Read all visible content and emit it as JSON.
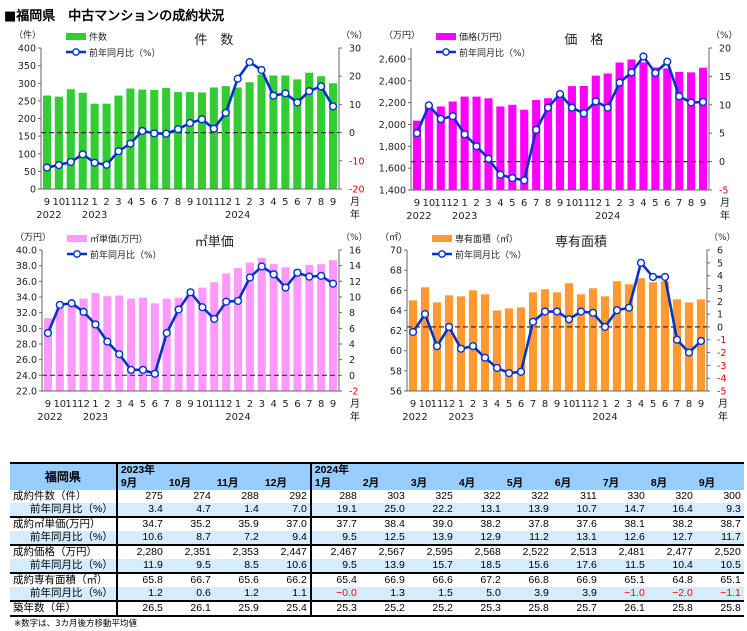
{
  "title": "■福岡県　中古マンションの成約状況",
  "month_labels": [
    "9",
    "10",
    "11",
    "12",
    "1",
    "2",
    "3",
    "4",
    "5",
    "6",
    "7",
    "8",
    "9",
    "10",
    "11",
    "12",
    "1",
    "2",
    "3",
    "4",
    "5",
    "6",
    "7",
    "8",
    "9"
  ],
  "year_labels": [
    {
      "index": 0,
      "label": "2022"
    },
    {
      "index": 4,
      "label": "2023"
    },
    {
      "index": 16,
      "label": "2024"
    }
  ],
  "axis_end_labels": {
    "month": "月",
    "year": "年"
  },
  "chart_data": [
    {
      "type": "bar+line",
      "title": "件　数",
      "left_unit": "（件）",
      "right_unit": "（%）",
      "bar_name": "件数",
      "line_name": "前年同月比（%）",
      "bar_color": "#33cc33",
      "line_color": "#0033cc",
      "ylim": [
        0,
        400
      ],
      "y2lim": [
        -20,
        30
      ],
      "yticks": [
        0,
        50,
        100,
        150,
        200,
        250,
        300,
        350,
        400
      ],
      "ytick_labels": [
        "0",
        "50",
        "100",
        "150",
        "200",
        "250",
        "300",
        "350",
        "400"
      ],
      "y2ticks": [
        -20,
        -10,
        0,
        10,
        20,
        30
      ],
      "y2tick_labels": [
        "-20",
        "-10",
        "0",
        "10",
        "20",
        "30"
      ],
      "bars": [
        265,
        262,
        283,
        273,
        242,
        242,
        265,
        285,
        282,
        281,
        287,
        275,
        275,
        274,
        288,
        292,
        288,
        303,
        325,
        322,
        322,
        311,
        330,
        320,
        300
      ],
      "line": [
        -12.4,
        -11.5,
        -10.4,
        -7.7,
        -10.7,
        -11.4,
        -6.6,
        -3.9,
        0.6,
        -0.3,
        -0.4,
        1.2,
        3.4,
        4.7,
        1.4,
        7.0,
        19.1,
        25.0,
        22.2,
        13.1,
        13.9,
        10.7,
        14.7,
        16.4,
        9.3
      ]
    },
    {
      "type": "bar+line",
      "title": "価　格",
      "left_unit": "（万円）",
      "right_unit": "（%）",
      "bar_name": "価格(万円）",
      "line_name": "前年同月比（%）",
      "bar_color": "#ff00ff",
      "line_color": "#0033cc",
      "ylim": [
        1400,
        2700
      ],
      "y2lim": [
        -5,
        20
      ],
      "yticks": [
        1400,
        1600,
        1800,
        2000,
        2200,
        2400,
        2600
      ],
      "ytick_labels": [
        "1,400",
        "1,600",
        "1,800",
        "2,000",
        "2,200",
        "2,400",
        "2,600"
      ],
      "y2ticks": [
        -5,
        0,
        5,
        10,
        15,
        20
      ],
      "y2tick_labels": [
        "-5",
        "0",
        "5",
        "10",
        "15",
        "20"
      ],
      "bars": [
        2035,
        2170,
        2165,
        2210,
        2255,
        2255,
        2240,
        2165,
        2180,
        2135,
        2225,
        2240,
        2280,
        2351,
        2353,
        2447,
        2467,
        2567,
        2595,
        2568,
        2522,
        2513,
        2481,
        2477,
        2520
      ],
      "line": [
        5.0,
        9.9,
        7.5,
        8.0,
        4.8,
        2.7,
        0.5,
        -2.3,
        -2.9,
        -3.3,
        5.6,
        9.5,
        11.9,
        9.5,
        8.5,
        10.6,
        9.5,
        13.9,
        15.7,
        18.5,
        15.6,
        17.6,
        11.5,
        10.4,
        10.5
      ]
    },
    {
      "type": "bar+line",
      "title": "㎡単価",
      "left_unit": "（万円）",
      "right_unit": "（%）",
      "bar_name": "㎡単価(万円）",
      "line_name": "前年同月比（%）",
      "bar_color": "#ff99ff",
      "line_color": "#0033cc",
      "ylim": [
        22,
        40
      ],
      "y2lim": [
        -2,
        16
      ],
      "yticks": [
        22,
        24,
        26,
        28,
        30,
        32,
        34,
        36,
        38,
        40
      ],
      "ytick_labels": [
        "22.0",
        "24.0",
        "26.0",
        "28.0",
        "30.0",
        "32.0",
        "34.0",
        "36.0",
        "38.0",
        "40.0"
      ],
      "y2ticks": [
        -2,
        0,
        2,
        4,
        6,
        8,
        10,
        12,
        14,
        16
      ],
      "y2tick_labels": [
        "-2",
        "0",
        "2",
        "4",
        "6",
        "8",
        "10",
        "12",
        "14",
        "16"
      ],
      "bars": [
        31.3,
        32.9,
        33.1,
        33.8,
        34.5,
        34.1,
        34.2,
        33.8,
        33.9,
        33.2,
        33.8,
        33.9,
        34.7,
        35.2,
        35.9,
        37.0,
        37.7,
        38.4,
        39.0,
        38.2,
        37.8,
        37.6,
        38.1,
        38.2,
        38.7
      ],
      "line": [
        5.4,
        9.0,
        9.2,
        8.1,
        6.5,
        4.3,
        2.7,
        0.7,
        0.7,
        0.2,
        5.4,
        8.4,
        10.6,
        8.7,
        7.2,
        9.4,
        9.5,
        12.5,
        13.9,
        12.9,
        11.2,
        13.1,
        12.6,
        12.7,
        11.7
      ]
    },
    {
      "type": "bar+line",
      "title": "専有面積",
      "left_unit": "（㎡）",
      "right_unit": "（%）",
      "bar_name": "専有面積（㎡）",
      "line_name": "前年同月比（%）",
      "bar_color": "#ff9933",
      "line_color": "#0033cc",
      "ylim": [
        56,
        70
      ],
      "y2lim": [
        -5,
        6
      ],
      "yticks": [
        56,
        58,
        60,
        62,
        64,
        66,
        68,
        70
      ],
      "ytick_labels": [
        "56",
        "58",
        "60",
        "62",
        "64",
        "66",
        "68",
        "70"
      ],
      "y2ticks": [
        -5,
        -4,
        -3,
        -2,
        -1,
        0,
        1,
        2,
        3,
        4,
        5,
        6
      ],
      "y2tick_labels": [
        "-5",
        "-4",
        "-3",
        "-2",
        "-1",
        "0",
        "1",
        "2",
        "3",
        "4",
        "5",
        "6"
      ],
      "bars": [
        65.0,
        66.3,
        64.8,
        65.5,
        65.4,
        66.0,
        65.6,
        64.0,
        64.2,
        64.3,
        65.8,
        66.1,
        65.8,
        66.7,
        65.6,
        66.2,
        65.4,
        66.9,
        66.6,
        67.2,
        66.8,
        66.9,
        65.1,
        64.8,
        65.1
      ],
      "line": [
        -0.4,
        1.0,
        -1.5,
        0.0,
        -1.7,
        -1.5,
        -2.4,
        -3.2,
        -3.6,
        -3.5,
        0.4,
        1.2,
        1.2,
        0.6,
        1.2,
        1.1,
        -0.0,
        1.3,
        1.5,
        5.0,
        3.9,
        3.9,
        -1.0,
        -2.0,
        -1.1
      ]
    }
  ],
  "table": {
    "corner": "福岡県",
    "year_headers": [
      {
        "col": 0,
        "label": "2023年"
      },
      {
        "col": 4,
        "label": "2024年"
      }
    ],
    "months": [
      "9月",
      "10月",
      "11月",
      "12月",
      "1月",
      "2月",
      "3月",
      "4月",
      "5月",
      "6月",
      "7月",
      "8月",
      "9月"
    ],
    "rows": [
      {
        "label": "成約件数（件）",
        "yoy": false,
        "values": [
          "275",
          "274",
          "288",
          "292",
          "288",
          "303",
          "325",
          "322",
          "322",
          "311",
          "330",
          "320",
          "300"
        ]
      },
      {
        "label": "前年同月比（%）",
        "yoy": true,
        "values": [
          "3.4",
          "4.7",
          "1.4",
          "7.0",
          "19.1",
          "25.0",
          "22.2",
          "13.1",
          "13.9",
          "10.7",
          "14.7",
          "16.4",
          "9.3"
        ]
      },
      {
        "label": "成約㎡単価(万円）",
        "yoy": false,
        "values": [
          "34.7",
          "35.2",
          "35.9",
          "37.0",
          "37.7",
          "38.4",
          "39.0",
          "38.2",
          "37.8",
          "37.6",
          "38.1",
          "38.2",
          "38.7"
        ]
      },
      {
        "label": "前年同月比（%）",
        "yoy": true,
        "values": [
          "10.6",
          "8.7",
          "7.2",
          "9.4",
          "9.5",
          "12.5",
          "13.9",
          "12.9",
          "11.2",
          "13.1",
          "12.6",
          "12.7",
          "11.7"
        ]
      },
      {
        "label": "成約価格（万円）",
        "yoy": false,
        "values": [
          "2,280",
          "2,351",
          "2,353",
          "2,447",
          "2,467",
          "2,567",
          "2,595",
          "2,568",
          "2,522",
          "2,513",
          "2,481",
          "2,477",
          "2,520"
        ]
      },
      {
        "label": "前年同月比（%）",
        "yoy": true,
        "values": [
          "11.9",
          "9.5",
          "8.5",
          "10.6",
          "9.5",
          "13.9",
          "15.7",
          "18.5",
          "15.6",
          "17.6",
          "11.5",
          "10.4",
          "10.5"
        ]
      },
      {
        "label": "成約専有面積（㎡）",
        "yoy": false,
        "values": [
          "65.8",
          "66.7",
          "65.6",
          "66.2",
          "65.4",
          "66.9",
          "66.6",
          "67.2",
          "66.8",
          "66.9",
          "65.1",
          "64.8",
          "65.1"
        ]
      },
      {
        "label": "前年同月比（%）",
        "yoy": true,
        "values": [
          "1.2",
          "0.6",
          "1.2",
          "1.1",
          "−0.0",
          "1.3",
          "1.5",
          "5.0",
          "3.9",
          "3.9",
          "−1.0",
          "−2.0",
          "−1.1"
        ]
      },
      {
        "label": "築年数（年）",
        "yoy": false,
        "values": [
          "26.5",
          "26.1",
          "25.9",
          "25.4",
          "25.3",
          "25.2",
          "25.2",
          "25.3",
          "25.8",
          "25.7",
          "26.1",
          "25.8",
          "25.8"
        ]
      }
    ],
    "note": "※数字は、3カ月後方移動平均値"
  }
}
